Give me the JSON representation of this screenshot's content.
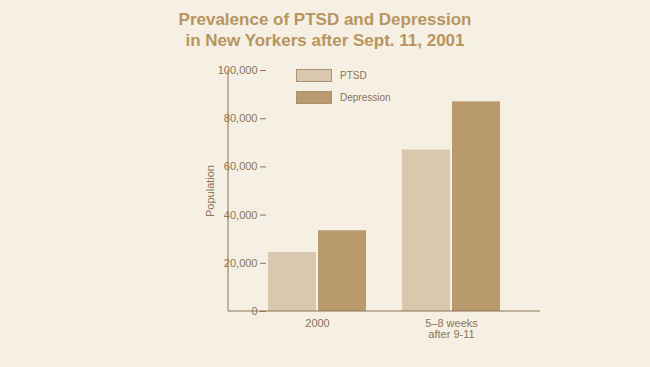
{
  "chart_data": {
    "type": "bar",
    "title": [
      "Prevalence of PTSD and Depression",
      "in New Yorkers after Sept. 11, 2001"
    ],
    "y_label": "Population",
    "categories": [
      "2000",
      "5–8 weeks\nafter 9-11"
    ],
    "series": [
      {
        "name": "PTSD",
        "color": "#d9c8ad",
        "values": [
          24500,
          67000
        ]
      },
      {
        "name": "Depression",
        "color": "#b89a6c",
        "values": [
          33500,
          87000
        ]
      }
    ],
    "ylim": [
      0,
      100000
    ],
    "yticks": [
      0,
      {
        "value": 20000,
        "label": "20,000"
      },
      {
        "value": 40000,
        "label": "40,000"
      },
      {
        "value": 60000,
        "label": "60,000"
      },
      {
        "value": 80000,
        "label": "80,000"
      },
      {
        "value": 100000,
        "label": "100,000"
      }
    ],
    "grid": false,
    "legend": "top"
  }
}
